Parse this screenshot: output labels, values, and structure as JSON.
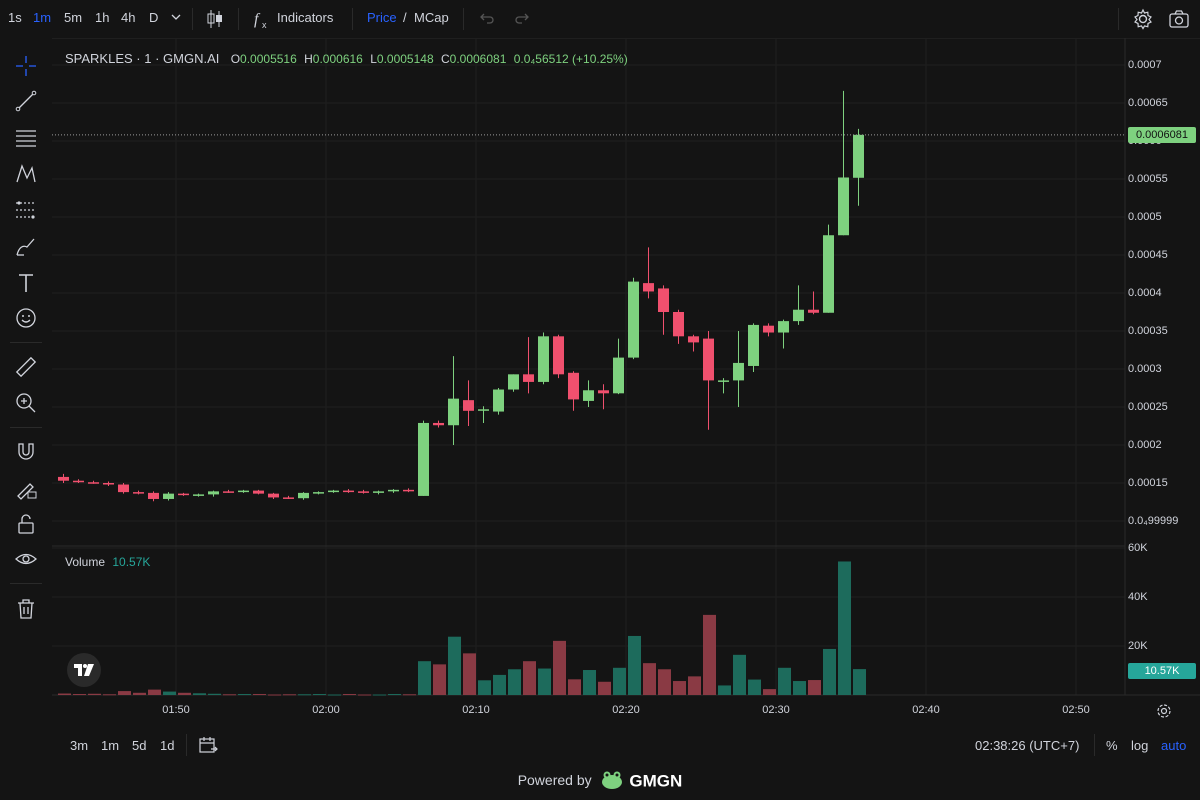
{
  "toolbar": {
    "intervals": [
      "1s",
      "1m",
      "5m",
      "1h",
      "4h",
      "D"
    ],
    "active_interval": "1m",
    "indicators_label": "Indicators",
    "price_label": "Price",
    "slash": "/",
    "mcap_label": "MCap"
  },
  "legend": {
    "symbol": "SPARKLES · 1 · GMGN.AI",
    "open_label": "O",
    "open": "0.0005516",
    "high_label": "H",
    "high": "0.000616",
    "low_label": "L",
    "low": "0.0005148",
    "close_label": "C",
    "close": "0.0006081",
    "change": "0.0₄56512",
    "change_pct": "(+10.25%)",
    "volume_label": "Volume",
    "volume_value": "10.57K"
  },
  "price_axis": {
    "labels": [
      "0.0007",
      "0.00065",
      "0.0006",
      "0.00055",
      "0.0005",
      "0.00045",
      "0.0004",
      "0.00035",
      "0.0003",
      "0.00025",
      "0.0002",
      "0.00015",
      "0.0₄99999"
    ],
    "current_price": "0.0006081"
  },
  "volume_axis": {
    "labels": [
      "60K",
      "40K",
      "20K"
    ],
    "current_volume": "10.57K"
  },
  "time_axis": {
    "labels": [
      "01:50",
      "02:00",
      "02:10",
      "02:20",
      "02:30",
      "02:40",
      "02:50"
    ]
  },
  "bottom_bar": {
    "ranges": [
      "3m",
      "1m",
      "5d",
      "1d"
    ],
    "clock": "02:38:26 (UTC+7)",
    "percent_label": "%",
    "log_label": "log",
    "auto_label": "auto"
  },
  "footer": {
    "powered_by": "Powered by",
    "brand": "GMGN"
  },
  "colors": {
    "up": "#7ed17f",
    "down": "#f0506e",
    "vol_up": "#1d6b5c",
    "vol_down": "#8a3a44",
    "accent": "#2962ff"
  },
  "chart_data": {
    "type": "candlestick",
    "interval": "1m",
    "ylim": [
      9.99e-05,
      0.0007
    ],
    "candles": [
      {
        "t": "01:45",
        "o": 0.000158,
        "h": 0.000162,
        "l": 0.00015,
        "c": 0.000153
      },
      {
        "t": "01:46",
        "o": 0.000153,
        "h": 0.000155,
        "l": 0.00015,
        "c": 0.000151
      },
      {
        "t": "01:47",
        "o": 0.000151,
        "h": 0.000153,
        "l": 0.000149,
        "c": 0.00015
      },
      {
        "t": "01:48",
        "o": 0.00015,
        "h": 0.000152,
        "l": 0.000146,
        "c": 0.000148
      },
      {
        "t": "01:49",
        "o": 0.000148,
        "h": 0.00015,
        "l": 0.000136,
        "c": 0.000138
      },
      {
        "t": "01:50",
        "o": 0.000138,
        "h": 0.00014,
        "l": 0.000135,
        "c": 0.000137
      },
      {
        "t": "01:51",
        "o": 0.000137,
        "h": 0.000139,
        "l": 0.000126,
        "c": 0.000129
      },
      {
        "t": "01:52",
        "o": 0.000129,
        "h": 0.000138,
        "l": 0.000127,
        "c": 0.000136
      },
      {
        "t": "01:53",
        "o": 0.000136,
        "h": 0.000137,
        "l": 0.000133,
        "c": 0.000134
      },
      {
        "t": "01:54",
        "o": 0.000134,
        "h": 0.000136,
        "l": 0.000132,
        "c": 0.000135
      },
      {
        "t": "01:55",
        "o": 0.000135,
        "h": 0.00014,
        "l": 0.000132,
        "c": 0.000139
      },
      {
        "t": "01:56",
        "o": 0.000139,
        "h": 0.000141,
        "l": 0.000137,
        "c": 0.000138
      },
      {
        "t": "01:57",
        "o": 0.000138,
        "h": 0.000141,
        "l": 0.000137,
        "c": 0.00014
      },
      {
        "t": "01:58",
        "o": 0.00014,
        "h": 0.000141,
        "l": 0.000135,
        "c": 0.000136
      },
      {
        "t": "01:59",
        "o": 0.000136,
        "h": 0.000137,
        "l": 0.000129,
        "c": 0.000131
      },
      {
        "t": "02:00",
        "o": 0.000131,
        "h": 0.000133,
        "l": 0.000129,
        "c": 0.00013
      },
      {
        "t": "02:01",
        "o": 0.00013,
        "h": 0.000138,
        "l": 0.000128,
        "c": 0.000137
      },
      {
        "t": "02:02",
        "o": 0.000137,
        "h": 0.000139,
        "l": 0.000135,
        "c": 0.000138
      },
      {
        "t": "02:03",
        "o": 0.000138,
        "h": 0.000141,
        "l": 0.000137,
        "c": 0.00014
      },
      {
        "t": "02:04",
        "o": 0.00014,
        "h": 0.000142,
        "l": 0.000137,
        "c": 0.000139
      },
      {
        "t": "02:05",
        "o": 0.000139,
        "h": 0.000141,
        "l": 0.000136,
        "c": 0.000137
      },
      {
        "t": "02:06",
        "o": 0.000137,
        "h": 0.00014,
        "l": 0.000135,
        "c": 0.000139
      },
      {
        "t": "02:07",
        "o": 0.000139,
        "h": 0.000142,
        "l": 0.000137,
        "c": 0.000141
      },
      {
        "t": "02:08",
        "o": 0.000141,
        "h": 0.000143,
        "l": 0.000138,
        "c": 0.00014
      },
      {
        "t": "02:09",
        "o": 0.000133,
        "h": 0.000232,
        "l": 0.000133,
        "c": 0.000229
      },
      {
        "t": "02:10",
        "o": 0.000229,
        "h": 0.000232,
        "l": 0.000223,
        "c": 0.000226
      },
      {
        "t": "02:11",
        "o": 0.000226,
        "h": 0.000317,
        "l": 0.0002,
        "c": 0.000261
      },
      {
        "t": "02:12",
        "o": 0.000259,
        "h": 0.000285,
        "l": 0.000225,
        "c": 0.000245
      },
      {
        "t": "02:13",
        "o": 0.000245,
        "h": 0.000251,
        "l": 0.000229,
        "c": 0.000247
      },
      {
        "t": "02:14",
        "o": 0.000244,
        "h": 0.000275,
        "l": 0.00024,
        "c": 0.000273
      },
      {
        "t": "02:15",
        "o": 0.000273,
        "h": 0.000293,
        "l": 0.00027,
        "c": 0.000293
      },
      {
        "t": "02:16",
        "o": 0.000293,
        "h": 0.000342,
        "l": 0.000268,
        "c": 0.000283
      },
      {
        "t": "02:17",
        "o": 0.000283,
        "h": 0.000348,
        "l": 0.00028,
        "c": 0.000343
      },
      {
        "t": "02:18",
        "o": 0.000343,
        "h": 0.000345,
        "l": 0.000288,
        "c": 0.000293
      },
      {
        "t": "02:19",
        "o": 0.000295,
        "h": 0.000297,
        "l": 0.000245,
        "c": 0.00026
      },
      {
        "t": "02:20",
        "o": 0.000258,
        "h": 0.000285,
        "l": 0.00025,
        "c": 0.000272
      },
      {
        "t": "02:21",
        "o": 0.000272,
        "h": 0.00028,
        "l": 0.000247,
        "c": 0.000268
      },
      {
        "t": "02:22",
        "o": 0.000268,
        "h": 0.00034,
        "l": 0.000267,
        "c": 0.000315
      },
      {
        "t": "02:23",
        "o": 0.000315,
        "h": 0.00042,
        "l": 0.000313,
        "c": 0.000415
      },
      {
        "t": "02:24",
        "o": 0.000413,
        "h": 0.00046,
        "l": 0.000393,
        "c": 0.000402
      },
      {
        "t": "02:25",
        "o": 0.000406,
        "h": 0.00041,
        "l": 0.000345,
        "c": 0.000375
      },
      {
        "t": "02:26",
        "o": 0.000375,
        "h": 0.000378,
        "l": 0.000333,
        "c": 0.000343
      },
      {
        "t": "02:27",
        "o": 0.000343,
        "h": 0.000345,
        "l": 0.000323,
        "c": 0.000335
      },
      {
        "t": "02:28",
        "o": 0.00034,
        "h": 0.00035,
        "l": 0.00022,
        "c": 0.000285
      },
      {
        "t": "02:29",
        "o": 0.000283,
        "h": 0.000288,
        "l": 0.000268,
        "c": 0.000285
      },
      {
        "t": "02:30",
        "o": 0.000285,
        "h": 0.00035,
        "l": 0.00025,
        "c": 0.000308
      },
      {
        "t": "02:31",
        "o": 0.000304,
        "h": 0.00036,
        "l": 0.000296,
        "c": 0.000358
      },
      {
        "t": "02:32",
        "o": 0.000357,
        "h": 0.00036,
        "l": 0.000343,
        "c": 0.000348
      },
      {
        "t": "02:33",
        "o": 0.000348,
        "h": 0.000365,
        "l": 0.000327,
        "c": 0.000363
      },
      {
        "t": "02:34",
        "o": 0.000363,
        "h": 0.00041,
        "l": 0.000358,
        "c": 0.000378
      },
      {
        "t": "02:35",
        "o": 0.000378,
        "h": 0.000402,
        "l": 0.000372,
        "c": 0.000374
      },
      {
        "t": "02:36",
        "o": 0.000374,
        "h": 0.00049,
        "l": 0.000374,
        "c": 0.000476
      },
      {
        "t": "02:37",
        "o": 0.000476,
        "h": 0.000666,
        "l": 0.000476,
        "c": 0.000552
      },
      {
        "t": "02:38",
        "o": 0.0005516,
        "h": 0.000616,
        "l": 0.0005148,
        "c": 0.0006081
      }
    ],
    "volume_ylim": [
      0,
      60000
    ],
    "volume": [
      600,
      400,
      500,
      300,
      1600,
      900,
      2200,
      1400,
      900,
      700,
      500,
      300,
      400,
      400,
      200,
      300,
      300,
      400,
      200,
      400,
      200,
      200,
      400,
      300,
      13800,
      12500,
      23800,
      17000,
      6000,
      8200,
      10500,
      13800,
      10800,
      22100,
      6400,
      10200,
      5400,
      11100,
      24100,
      13000,
      10500,
      5700,
      7600,
      32700,
      3900,
      16400,
      6300,
      2400,
      11100,
      5700,
      6100,
      18800,
      54500,
      10570
    ],
    "volume_up": [
      false,
      false,
      false,
      false,
      false,
      false,
      false,
      true,
      false,
      true,
      true,
      false,
      true,
      false,
      false,
      false,
      true,
      true,
      true,
      false,
      false,
      true,
      true,
      false,
      true,
      false,
      true,
      false,
      true,
      true,
      true,
      false,
      true,
      false,
      false,
      true,
      false,
      true,
      true,
      false,
      false,
      false,
      false,
      false,
      true,
      true,
      true,
      false,
      true,
      true,
      false,
      true,
      true,
      true
    ]
  }
}
